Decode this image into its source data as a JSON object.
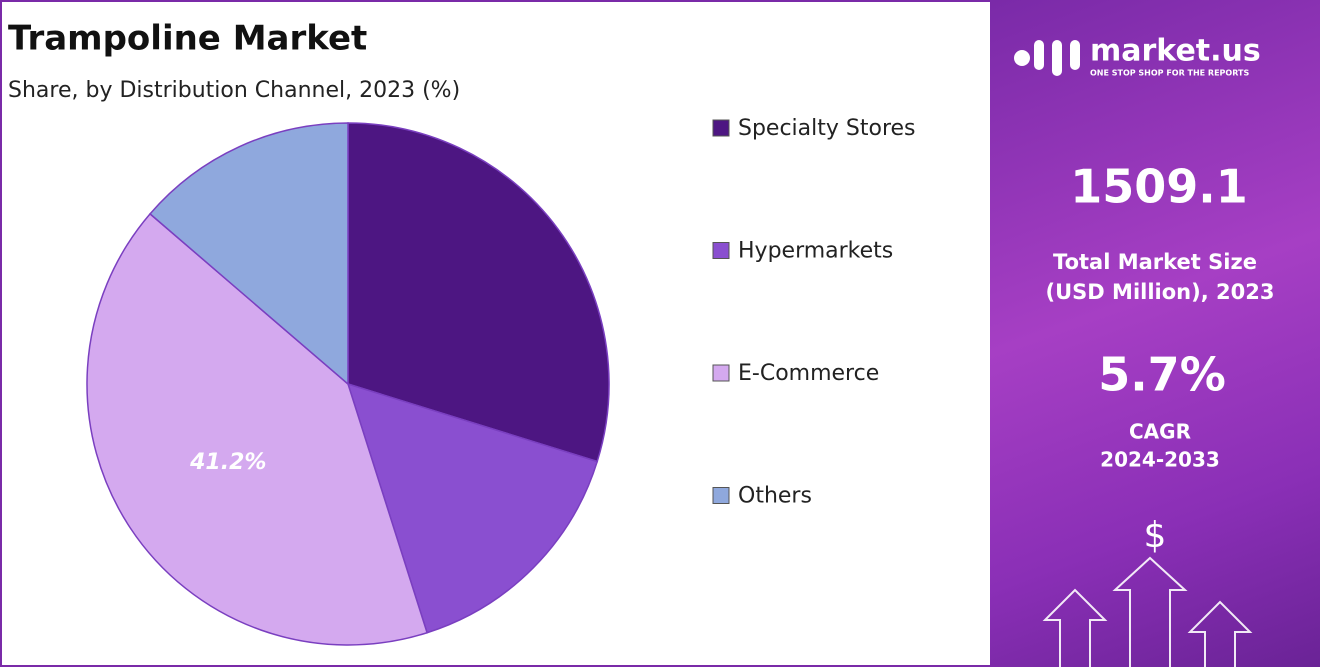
{
  "chart_data": {
    "type": "pie",
    "title": "Trampoline Market",
    "subtitle": "Share, by Distribution Channel, 2023 (%)",
    "categories": [
      "Specialty Stores",
      "Hypermarkets",
      "E-Commerce",
      "Others"
    ],
    "values": [
      29.8,
      15.3,
      41.2,
      13.7
    ],
    "value_labels": [
      null,
      null,
      "41.2%",
      null
    ],
    "colors": [
      "#4d1682",
      "#8a4fd0",
      "#d4a9ef",
      "#8fa8dd"
    ]
  },
  "panel": {
    "logo": "market.us",
    "tagline": "ONE STOP SHOP FOR THE REPORTS",
    "market_size": "1509.1",
    "market_size_label_1": "Total Market Size",
    "market_size_label_2": "(USD Million), 2023",
    "cagr": "5.7%",
    "cagr_label_1": "CAGR",
    "cagr_label_2": "2024-2033",
    "icon": "$"
  }
}
